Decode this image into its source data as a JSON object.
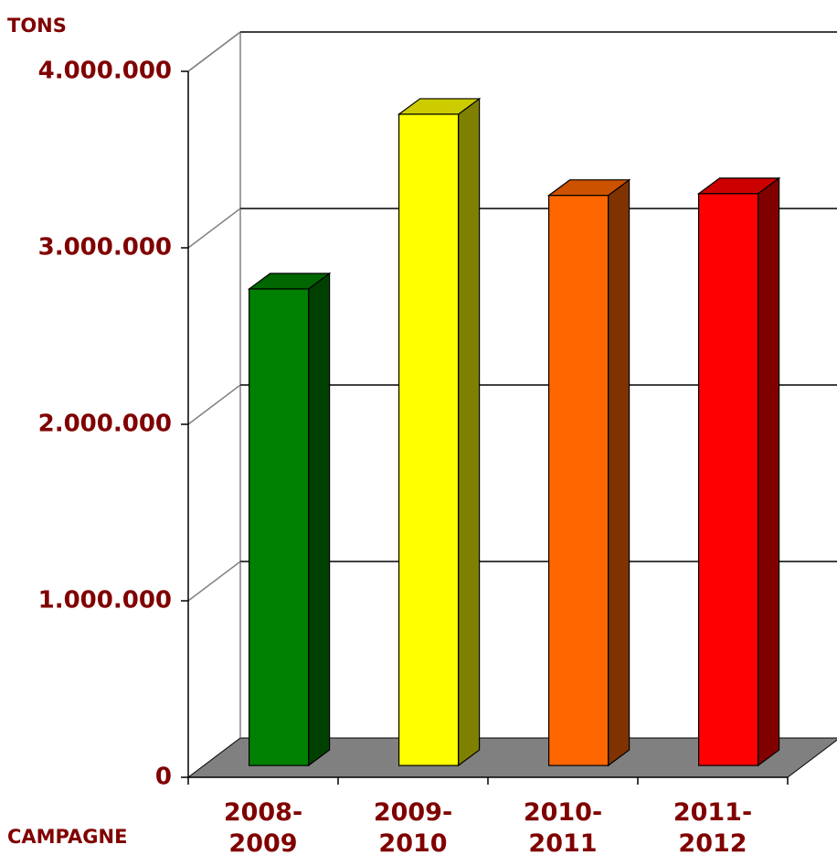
{
  "chart_data": {
    "type": "bar3d",
    "y_label": "TONS",
    "x_label": "CAMPAGNE",
    "categories": [
      "2008-2009",
      "2009-2010",
      "2010-2011",
      "2011-2012"
    ],
    "values": [
      2700000,
      3690000,
      3230000,
      3240000
    ],
    "colors": [
      "#008000",
      "#ffff00",
      "#ff6600",
      "#ff0000"
    ],
    "ylim": [
      0,
      4000000
    ],
    "yticks": [
      0,
      {
        "value": 1000000,
        "label": "1.000.000"
      },
      {
        "value": 2000000,
        "label": "2.000.000"
      },
      {
        "value": 3000000,
        "label": "3.000.000"
      },
      {
        "value": 4000000,
        "label": "4.000.000"
      }
    ],
    "grid": true
  }
}
